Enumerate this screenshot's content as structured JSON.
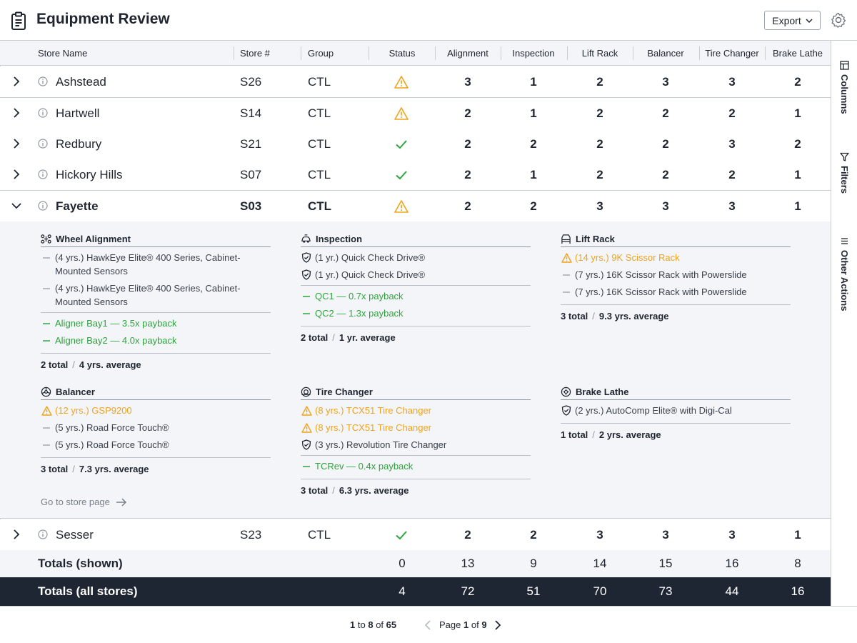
{
  "header": {
    "title": "Equipment Review",
    "export_label": "Export"
  },
  "columns": {
    "store_name": "Store Name",
    "store_num": "Store #",
    "group": "Group",
    "status": "Status",
    "alignment": "Alignment",
    "inspection": "Inspection",
    "lift_rack": "Lift Rack",
    "balancer": "Balancer",
    "tire_changer": "Tire Changer",
    "brake_lathe": "Brake Lathe"
  },
  "rows": [
    {
      "name": "Ashstead",
      "num": "S26",
      "group": "CTL",
      "status": "warning",
      "alignment": "3",
      "inspection": "1",
      "lift_rack": "2",
      "balancer": "3",
      "tire_changer": "3",
      "brake_lathe": "2"
    },
    {
      "name": "Hartwell",
      "num": "S14",
      "group": "CTL",
      "status": "warning",
      "alignment": "2",
      "inspection": "1",
      "lift_rack": "2",
      "balancer": "2",
      "tire_changer": "2",
      "brake_lathe": "1"
    },
    {
      "name": "Redbury",
      "num": "S21",
      "group": "CTL",
      "status": "ok",
      "alignment": "2",
      "inspection": "2",
      "lift_rack": "2",
      "balancer": "2",
      "tire_changer": "3",
      "brake_lathe": "2"
    },
    {
      "name": "Hickory Hills",
      "num": "S07",
      "group": "CTL",
      "status": "ok",
      "alignment": "2",
      "inspection": "1",
      "lift_rack": "2",
      "balancer": "2",
      "tire_changer": "2",
      "brake_lathe": "1"
    },
    {
      "name": "Fayette",
      "num": "S03",
      "group": "CTL",
      "status": "warning",
      "alignment": "2",
      "inspection": "2",
      "lift_rack": "3",
      "balancer": "3",
      "tire_changer": "3",
      "brake_lathe": "1"
    },
    {
      "name": "Sesser",
      "num": "S23",
      "group": "CTL",
      "status": "ok",
      "alignment": "2",
      "inspection": "2",
      "lift_rack": "3",
      "balancer": "3",
      "tire_changer": "3",
      "brake_lathe": "1"
    }
  ],
  "expanded": {
    "wheel_alignment": {
      "title": "Wheel Alignment",
      "items": [
        "(4 yrs.) HawkEye Elite® 400 Series, Cabinet-Mounted Sensors",
        "(4 yrs.) HawkEye Elite® 400 Series, Cabinet-Mounted Sensors"
      ],
      "payback": [
        "Aligner Bay1 — 3.5x payback",
        "Aligner Bay2 — 4.0x payback"
      ],
      "total": "2 total",
      "average": "4 yrs. average"
    },
    "inspection": {
      "title": "Inspection",
      "items": [
        "(1 yr.) Quick Check Drive®",
        "(1 yr.) Quick Check Drive®"
      ],
      "payback": [
        "QC1 — 0.7x payback",
        "QC2 — 1.3x payback"
      ],
      "total": "2 total",
      "average": "1 yr. average"
    },
    "lift_rack": {
      "title": "Lift Rack",
      "warn_items": [
        "(14 yrs.) 9K Scissor Rack"
      ],
      "items": [
        "(7 yrs.) 16K Scissor Rack with Powerslide",
        "(7 yrs.) 16K Scissor Rack with Powerslide"
      ],
      "total": "3 total",
      "average": "9.3 yrs. average"
    },
    "balancer": {
      "title": "Balancer",
      "warn_items": [
        "(12 yrs.) GSP9200"
      ],
      "items": [
        "(5 yrs.) Road Force Touch®",
        "(5 yrs.) Road Force Touch®"
      ],
      "total": "3 total",
      "average": "7.3 yrs. average"
    },
    "tire_changer": {
      "title": "Tire Changer",
      "warn_items": [
        "(8 yrs.) TCX51 Tire Changer",
        "(8 yrs.) TCX51 Tire Changer"
      ],
      "items": [
        "(3 yrs.) Revolution Tire Changer"
      ],
      "payback": [
        "TCRev — 0.4x payback"
      ],
      "total": "3 total",
      "average": "6.3 yrs. average"
    },
    "brake_lathe": {
      "title": "Brake Lathe",
      "items": [
        "(2 yrs.) AutoComp Elite® with Digi-Cal"
      ],
      "total": "1 total",
      "average": "2 yrs. average"
    },
    "goto_label": "Go to store page"
  },
  "totals_shown": {
    "label": "Totals (shown)",
    "status": "0",
    "alignment": "13",
    "inspection": "9",
    "lift_rack": "14",
    "balancer": "15",
    "tire_changer": "16",
    "brake_lathe": "8"
  },
  "totals_all": {
    "label": "Totals (all stores)",
    "status": "4",
    "alignment": "72",
    "inspection": "51",
    "lift_rack": "70",
    "balancer": "73",
    "tire_changer": "44",
    "brake_lathe": "16"
  },
  "rail": {
    "columns": "Columns",
    "filters": "Filters",
    "other_actions": "Other Actions"
  },
  "pagination": {
    "from": "1",
    "to_word": "to",
    "to": "8",
    "of_word": "of",
    "total": "65",
    "page_word": "Page",
    "page": "1",
    "pages": "9"
  },
  "colors": {
    "warning": "#f0a31a",
    "ok": "#2ea43d",
    "dark": "#1f2633"
  },
  "icons": [
    "clipboard-icon",
    "gear-icon",
    "chevron-down-icon",
    "chevron-right-icon",
    "info-icon",
    "warning-icon",
    "check-icon",
    "shield-icon",
    "arrow-right-icon",
    "columns-icon",
    "filter-icon",
    "menu-icon"
  ]
}
